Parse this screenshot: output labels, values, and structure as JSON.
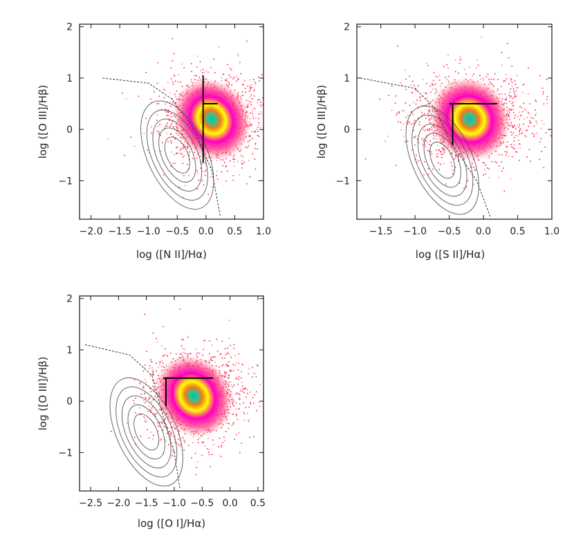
{
  "chart_data": [
    {
      "type": "scatter",
      "title": "",
      "xlabel": "log ([N II]/Hα)",
      "ylabel": "log ([O III]/Hβ)",
      "xlim": [
        -2.2,
        1.0
      ],
      "ylim": [
        -1.75,
        2.05
      ],
      "xticks": [
        -2.0,
        -1.5,
        -1.0,
        -0.5,
        0.0,
        0.5,
        1.0
      ],
      "xtick_labels": [
        "−2.0",
        "−1.5",
        "−1.0",
        "−0.5",
        "0.0",
        "0.5",
        "1.0"
      ],
      "yticks": [
        -1,
        0,
        1,
        2
      ],
      "ytick_labels": [
        "−1",
        "0",
        "1",
        "2"
      ],
      "grid": false,
      "scatter_center": [
        0.1,
        0.2
      ],
      "division_lines": [
        {
          "x": [
            -0.05,
            0.2
          ],
          "y": [
            0.5,
            0.5
          ]
        },
        {
          "x": [
            -0.05,
            -0.05
          ],
          "y": [
            -0.65,
            1.05
          ]
        }
      ],
      "galaxy_contour_center": [
        -0.5,
        -0.5
      ],
      "demarcation_curve": [
        [
          -1.8,
          1.0
        ],
        [
          -1.0,
          0.9
        ],
        [
          -0.6,
          0.6
        ],
        [
          -0.2,
          0.0
        ],
        [
          0.1,
          -0.8
        ],
        [
          0.25,
          -1.7
        ]
      ]
    },
    {
      "type": "scatter",
      "title": "",
      "xlabel": "log ([S II]/Hα)",
      "ylabel": "log ([O III]/Hβ)",
      "xlim": [
        -1.85,
        1.0
      ],
      "ylim": [
        -1.75,
        2.05
      ],
      "xticks": [
        -1.5,
        -1.0,
        -0.5,
        0.0,
        0.5,
        1.0
      ],
      "xtick_labels": [
        "−1.5",
        "−1.0",
        "−0.5",
        "0.0",
        "0.5",
        "1.0"
      ],
      "yticks": [
        -1,
        0,
        1,
        2
      ],
      "ytick_labels": [
        "−1",
        "0",
        "1",
        "2"
      ],
      "grid": false,
      "scatter_center": [
        -0.2,
        0.2
      ],
      "division_lines": [
        {
          "x": [
            -0.5,
            0.2
          ],
          "y": [
            0.5,
            0.5
          ]
        },
        {
          "x": [
            -0.45,
            -0.45
          ],
          "y": [
            -0.3,
            0.5
          ]
        }
      ],
      "galaxy_contour_center": [
        -0.6,
        -0.6
      ],
      "demarcation_curve": [
        [
          -1.8,
          1.0
        ],
        [
          -1.0,
          0.8
        ],
        [
          -0.7,
          0.4
        ],
        [
          -0.5,
          -0.2
        ],
        [
          -0.1,
          -1.0
        ],
        [
          0.1,
          -1.7
        ]
      ]
    },
    {
      "type": "scatter",
      "title": "",
      "xlabel": "log ([O I]/Hα)",
      "ylabel": "log ([O III]/Hβ)",
      "xlim": [
        -2.7,
        0.6
      ],
      "ylim": [
        -1.75,
        2.05
      ],
      "xticks": [
        -2.5,
        -2.0,
        -1.5,
        -1.0,
        -0.5,
        0.0,
        0.5
      ],
      "xtick_labels": [
        "−2.5",
        "−2.0",
        "−1.5",
        "−1.0",
        "−0.5",
        "0.0",
        "0.5"
      ],
      "yticks": [
        -1,
        0,
        1,
        2
      ],
      "ytick_labels": [
        "−1",
        "0",
        "1",
        "2"
      ],
      "grid": false,
      "scatter_center": [
        -0.65,
        0.1
      ],
      "division_lines": [
        {
          "x": [
            -1.2,
            -0.3
          ],
          "y": [
            0.45,
            0.45
          ]
        },
        {
          "x": [
            -1.15,
            -1.15
          ],
          "y": [
            -0.1,
            0.45
          ]
        }
      ],
      "galaxy_contour_center": [
        -1.5,
        -0.6
      ],
      "demarcation_curve": [
        [
          -2.6,
          1.1
        ],
        [
          -1.8,
          0.9
        ],
        [
          -1.4,
          0.5
        ],
        [
          -1.2,
          -0.3
        ],
        [
          -1.0,
          -1.0
        ],
        [
          -0.9,
          -1.7
        ]
      ]
    }
  ]
}
